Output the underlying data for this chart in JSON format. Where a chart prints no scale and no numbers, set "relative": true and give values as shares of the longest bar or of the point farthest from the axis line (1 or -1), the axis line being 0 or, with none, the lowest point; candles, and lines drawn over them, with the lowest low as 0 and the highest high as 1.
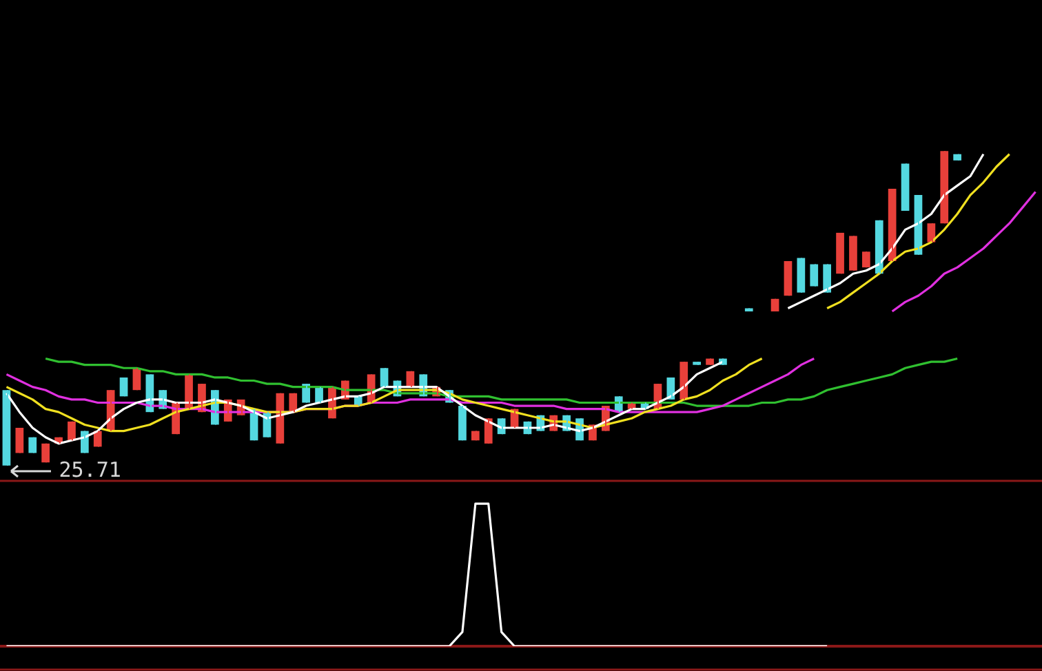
{
  "chart_data": [
    {
      "type": "candlestick",
      "relative": true,
      "tick_labels": false,
      "legend": false,
      "categories": [
        null,
        null,
        null,
        null,
        null,
        null,
        null,
        null,
        null,
        null,
        null,
        null,
        null,
        null,
        null,
        null,
        null,
        null,
        null,
        null,
        null,
        null,
        null,
        null,
        null,
        null,
        null,
        null,
        null,
        null,
        null,
        null,
        null,
        null,
        null,
        null,
        null,
        null,
        null,
        null,
        null,
        null,
        null,
        null,
        null,
        null,
        null,
        null,
        null,
        null,
        null,
        null,
        null,
        null,
        null,
        null,
        null,
        null,
        null,
        null,
        null,
        null,
        null,
        null,
        null,
        null,
        null,
        null,
        null,
        null,
        null,
        null,
        null,
        null,
        null,
        null,
        null,
        null,
        null,
        null
      ],
      "ohlc": [
        [
          0.24,
          0.24,
          0,
          0
        ],
        [
          0.04,
          0.12,
          0.04,
          0.12
        ],
        [
          0.09,
          0.09,
          0.04,
          0.04
        ],
        [
          0.01,
          0.07,
          0.01,
          0.07
        ],
        [
          0.07,
          0.09,
          0.07,
          0.09
        ],
        [
          0.08,
          0.14,
          0.08,
          0.14
        ],
        [
          0.11,
          0.11,
          0.04,
          0.04
        ],
        [
          0.06,
          0.11,
          0.06,
          0.11
        ],
        [
          0.11,
          0.24,
          0.11,
          0.24
        ],
        [
          0.28,
          0.28,
          0.22,
          0.22
        ],
        [
          0.24,
          0.31,
          0.24,
          0.31
        ],
        [
          0.29,
          0.29,
          0.17,
          0.17
        ],
        [
          0.24,
          0.24,
          0.18,
          0.18
        ],
        [
          0.1,
          0.2,
          0.1,
          0.2
        ],
        [
          0.18,
          0.29,
          0.18,
          0.29
        ],
        [
          0.17,
          0.26,
          0.17,
          0.26
        ],
        [
          0.24,
          0.24,
          0.13,
          0.13
        ],
        [
          0.14,
          0.21,
          0.14,
          0.21
        ],
        [
          0.16,
          0.21,
          0.16,
          0.21
        ],
        [
          0.18,
          0.18,
          0.08,
          0.08
        ],
        [
          0.17,
          0.17,
          0.09,
          0.09
        ],
        [
          0.07,
          0.23,
          0.07,
          0.23
        ],
        [
          0.17,
          0.23,
          0.17,
          0.23
        ],
        [
          0.26,
          0.26,
          0.2,
          0.2
        ],
        [
          0.25,
          0.25,
          0.2,
          0.2
        ],
        [
          0.15,
          0.25,
          0.15,
          0.25
        ],
        [
          0.21,
          0.27,
          0.21,
          0.27
        ],
        [
          0.22,
          0.22,
          0.19,
          0.19
        ],
        [
          0.2,
          0.29,
          0.2,
          0.29
        ],
        [
          0.31,
          0.31,
          0.25,
          0.25
        ],
        [
          0.27,
          0.27,
          0.22,
          0.22
        ],
        [
          0.25,
          0.3,
          0.25,
          0.3
        ],
        [
          0.29,
          0.29,
          0.22,
          0.22
        ],
        [
          0.22,
          0.25,
          0.22,
          0.25
        ],
        [
          0.24,
          0.24,
          0.2,
          0.2
        ],
        [
          0.19,
          0.19,
          0.08,
          0.08
        ],
        [
          0.08,
          0.11,
          0.08,
          0.11
        ],
        [
          0.07,
          0.15,
          0.07,
          0.15
        ],
        [
          0.15,
          0.15,
          0.1,
          0.1
        ],
        [
          0.12,
          0.18,
          0.12,
          0.18
        ],
        [
          0.14,
          0.14,
          0.1,
          0.1
        ],
        [
          0.16,
          0.16,
          0.11,
          0.11
        ],
        [
          0.11,
          0.16,
          0.11,
          0.16
        ],
        [
          0.16,
          0.16,
          0.11,
          0.11
        ],
        [
          0.15,
          0.15,
          0.08,
          0.08
        ],
        [
          0.08,
          0.13,
          0.08,
          0.13
        ],
        [
          0.11,
          0.19,
          0.11,
          0.19
        ],
        [
          0.22,
          0.22,
          0.17,
          0.17
        ],
        [
          0.18,
          0.2,
          0.18,
          0.2
        ],
        [
          0.2,
          0.2,
          0.18,
          0.18
        ],
        [
          0.18,
          0.26,
          0.18,
          0.26
        ],
        [
          0.28,
          0.28,
          0.21,
          0.21
        ],
        [
          0.21,
          0.33,
          0.21,
          0.33
        ],
        [
          0.33,
          0.33,
          0.32,
          0.32
        ],
        [
          0.32,
          0.34,
          0.32,
          0.34
        ],
        [
          0.34,
          0.34,
          0.32,
          0.32
        ],
        null,
        [
          0.5,
          0.5,
          0.49,
          0.49
        ],
        null,
        [
          0.49,
          0.53,
          0.49,
          0.53
        ],
        [
          0.54,
          0.65,
          0.54,
          0.65
        ],
        [
          0.66,
          0.66,
          0.55,
          0.55
        ],
        [
          0.64,
          0.64,
          0.57,
          0.57
        ],
        [
          0.64,
          0.64,
          0.55,
          0.55
        ],
        [
          0.61,
          0.74,
          0.61,
          0.74
        ],
        [
          0.62,
          0.73,
          0.62,
          0.73
        ],
        [
          0.63,
          0.68,
          0.63,
          0.68
        ],
        [
          0.78,
          0.78,
          0.61,
          0.61
        ],
        [
          0.65,
          0.88,
          0.65,
          0.88
        ],
        [
          0.96,
          0.96,
          0.81,
          0.81
        ],
        [
          0.86,
          0.86,
          0.67,
          0.67
        ],
        [
          0.71,
          0.77,
          0.71,
          0.77
        ],
        [
          0.77,
          1,
          0.77,
          1
        ],
        [
          0.99,
          0.99,
          0.97,
          0.97
        ],
        null,
        null,
        null,
        null,
        null,
        null
      ],
      "colors": [
        "#54d8e0",
        "#e8403a",
        "#54d8e0",
        "#e8403a",
        "#e8403a",
        "#e8403a",
        "#54d8e0",
        "#e8403a",
        "#e8403a",
        "#54d8e0",
        "#e8403a",
        "#54d8e0",
        "#54d8e0",
        "#e8403a",
        "#e8403a",
        "#e8403a",
        "#54d8e0",
        "#e8403a",
        "#e8403a",
        "#54d8e0",
        "#54d8e0",
        "#e8403a",
        "#e8403a",
        "#54d8e0",
        "#54d8e0",
        "#e8403a",
        "#e8403a",
        "#54d8e0",
        "#e8403a",
        "#54d8e0",
        "#54d8e0",
        "#e8403a",
        "#54d8e0",
        "#e8403a",
        "#54d8e0",
        "#54d8e0",
        "#e8403a",
        "#e8403a",
        "#54d8e0",
        "#e8403a",
        "#54d8e0",
        "#54d8e0",
        "#e8403a",
        "#54d8e0",
        "#54d8e0",
        "#e8403a",
        "#e8403a",
        "#54d8e0",
        "#e8403a",
        "#54d8e0",
        "#e8403a",
        "#54d8e0",
        "#e8403a",
        "#54d8e0",
        "#e8403a",
        "#54d8e0",
        null,
        "#54d8e0",
        null,
        "#e8403a",
        "#e8403a",
        "#54d8e0",
        "#54d8e0",
        "#54d8e0",
        "#e8403a",
        "#e8403a",
        "#e8403a",
        "#54d8e0",
        "#e8403a",
        "#54d8e0",
        "#54d8e0",
        "#e8403a",
        "#e8403a",
        "#54d8e0",
        null,
        null,
        null,
        null,
        null,
        null
      ],
      "series": [
        {
          "type": "line",
          "color": "#ffffff",
          "values": [
            0.23,
            0.17,
            0.12,
            0.09,
            0.07,
            0.08,
            0.09,
            0.11,
            0.15,
            0.18,
            0.2,
            0.21,
            0.21,
            0.2,
            0.2,
            0.2,
            0.21,
            0.2,
            0.19,
            0.17,
            0.15,
            0.16,
            0.17,
            0.19,
            0.2,
            0.21,
            0.22,
            0.22,
            0.23,
            0.25,
            0.25,
            0.25,
            0.25,
            0.25,
            0.22,
            0.19,
            0.16,
            0.14,
            0.12,
            0.12,
            0.12,
            0.12,
            0.13,
            0.12,
            0.11,
            0.12,
            0.14,
            0.16,
            0.18,
            0.18,
            0.2,
            0.22,
            0.25,
            0.29,
            0.31,
            0.33,
            null,
            null,
            null,
            null,
            0.5,
            0.52,
            0.54,
            0.56,
            0.58,
            0.61,
            0.62,
            0.64,
            0.69,
            0.75,
            0.77,
            0.8,
            0.86,
            0.89,
            0.92,
            0.99,
            null,
            null,
            null,
            null
          ]
        },
        {
          "type": "line",
          "color": "#f0e020",
          "values": [
            0.25,
            0.23,
            0.21,
            0.18,
            0.17,
            0.15,
            0.13,
            0.12,
            0.11,
            0.11,
            0.12,
            0.13,
            0.15,
            0.17,
            0.18,
            0.19,
            0.2,
            0.2,
            0.19,
            0.18,
            0.17,
            0.17,
            0.17,
            0.18,
            0.18,
            0.18,
            0.19,
            0.19,
            0.2,
            0.22,
            0.24,
            0.24,
            0.24,
            0.24,
            0.23,
            0.21,
            0.2,
            0.19,
            0.18,
            0.17,
            0.16,
            0.15,
            0.14,
            0.14,
            0.13,
            0.12,
            0.13,
            0.14,
            0.15,
            0.17,
            0.18,
            0.19,
            0.21,
            0.22,
            0.24,
            0.27,
            0.29,
            0.32,
            0.34,
            null,
            null,
            null,
            null,
            0.5,
            0.52,
            0.55,
            0.58,
            0.61,
            0.65,
            0.68,
            0.69,
            0.71,
            0.75,
            0.8,
            0.86,
            0.9,
            0.95,
            0.99,
            null,
            null
          ]
        },
        {
          "type": "line",
          "color": "#e030e0",
          "values": [
            0.29,
            0.27,
            0.25,
            0.24,
            0.22,
            0.21,
            0.21,
            0.2,
            0.2,
            0.2,
            0.2,
            0.19,
            0.19,
            0.18,
            0.18,
            0.18,
            0.17,
            0.17,
            0.17,
            0.17,
            0.17,
            0.17,
            0.17,
            0.18,
            0.18,
            0.18,
            0.19,
            0.19,
            0.2,
            0.2,
            0.2,
            0.21,
            0.21,
            0.21,
            0.21,
            0.2,
            0.2,
            0.2,
            0.2,
            0.19,
            0.19,
            0.19,
            0.19,
            0.18,
            0.18,
            0.18,
            0.18,
            0.17,
            0.17,
            0.17,
            0.17,
            0.17,
            0.17,
            0.17,
            0.18,
            0.19,
            0.21,
            0.23,
            0.25,
            0.27,
            0.29,
            0.32,
            0.34,
            null,
            null,
            null,
            null,
            null,
            0.49,
            0.52,
            0.54,
            0.57,
            0.61,
            0.63,
            0.66,
            0.69,
            0.73,
            0.77,
            0.82,
            0.87
          ]
        },
        {
          "type": "line",
          "color": "#30c030",
          "values": [
            null,
            null,
            null,
            0.34,
            0.33,
            0.33,
            0.32,
            0.32,
            0.32,
            0.31,
            0.31,
            0.3,
            0.3,
            0.29,
            0.29,
            0.29,
            0.28,
            0.28,
            0.27,
            0.27,
            0.26,
            0.26,
            0.25,
            0.25,
            0.25,
            0.25,
            0.24,
            0.24,
            0.24,
            0.24,
            0.23,
            0.23,
            0.23,
            0.23,
            0.22,
            0.22,
            0.22,
            0.22,
            0.21,
            0.21,
            0.21,
            0.21,
            0.21,
            0.21,
            0.2,
            0.2,
            0.2,
            0.2,
            0.2,
            0.2,
            0.2,
            0.2,
            0.2,
            0.19,
            0.19,
            0.19,
            0.19,
            0.19,
            0.2,
            0.2,
            0.21,
            0.21,
            0.22,
            0.24,
            0.25,
            0.26,
            0.27,
            0.28,
            0.29,
            0.31,
            0.32,
            0.33,
            0.33,
            0.34,
            null,
            null,
            null,
            null,
            null,
            null
          ]
        }
      ],
      "annotations": [
        "25.71"
      ]
    },
    {
      "type": "line",
      "relative": true,
      "tick_labels": false,
      "legend": false,
      "categories": [
        null,
        null,
        null,
        null,
        null,
        null,
        null,
        null,
        null,
        null,
        null,
        null,
        null,
        null,
        null,
        null,
        null,
        null,
        null,
        null,
        null,
        null,
        null,
        null,
        null,
        null,
        null,
        null,
        null,
        null,
        null,
        null,
        null,
        null,
        null,
        null,
        null,
        null,
        null,
        null,
        null,
        null,
        null,
        null,
        null,
        null,
        null,
        null,
        null,
        null,
        null,
        null,
        null,
        null,
        null,
        null,
        null,
        null,
        null,
        null,
        null,
        null,
        null,
        null,
        null,
        null,
        null,
        null,
        null,
        null,
        null,
        null,
        null,
        null,
        null,
        null,
        null,
        null,
        null,
        null
      ],
      "series": [
        {
          "color": "#ffffff",
          "values": [
            0,
            0,
            0,
            0,
            0,
            0,
            0,
            0,
            0,
            0,
            0,
            0,
            0,
            0,
            0,
            0,
            0,
            0,
            0,
            0,
            0,
            0,
            0,
            0,
            0,
            0,
            0,
            0,
            0,
            0,
            0,
            0,
            0,
            0,
            0,
            0.1,
            1,
            1,
            0.1,
            0,
            0,
            0,
            0,
            0,
            0,
            0,
            0,
            0,
            0,
            0,
            0,
            0,
            0,
            0,
            0,
            0,
            0,
            0,
            0,
            0,
            0,
            0,
            0,
            0,
            null,
            null,
            null,
            null,
            null,
            null,
            null,
            null,
            null,
            null,
            null,
            null,
            null,
            null,
            null,
            null
          ]
        }
      ]
    }
  ]
}
